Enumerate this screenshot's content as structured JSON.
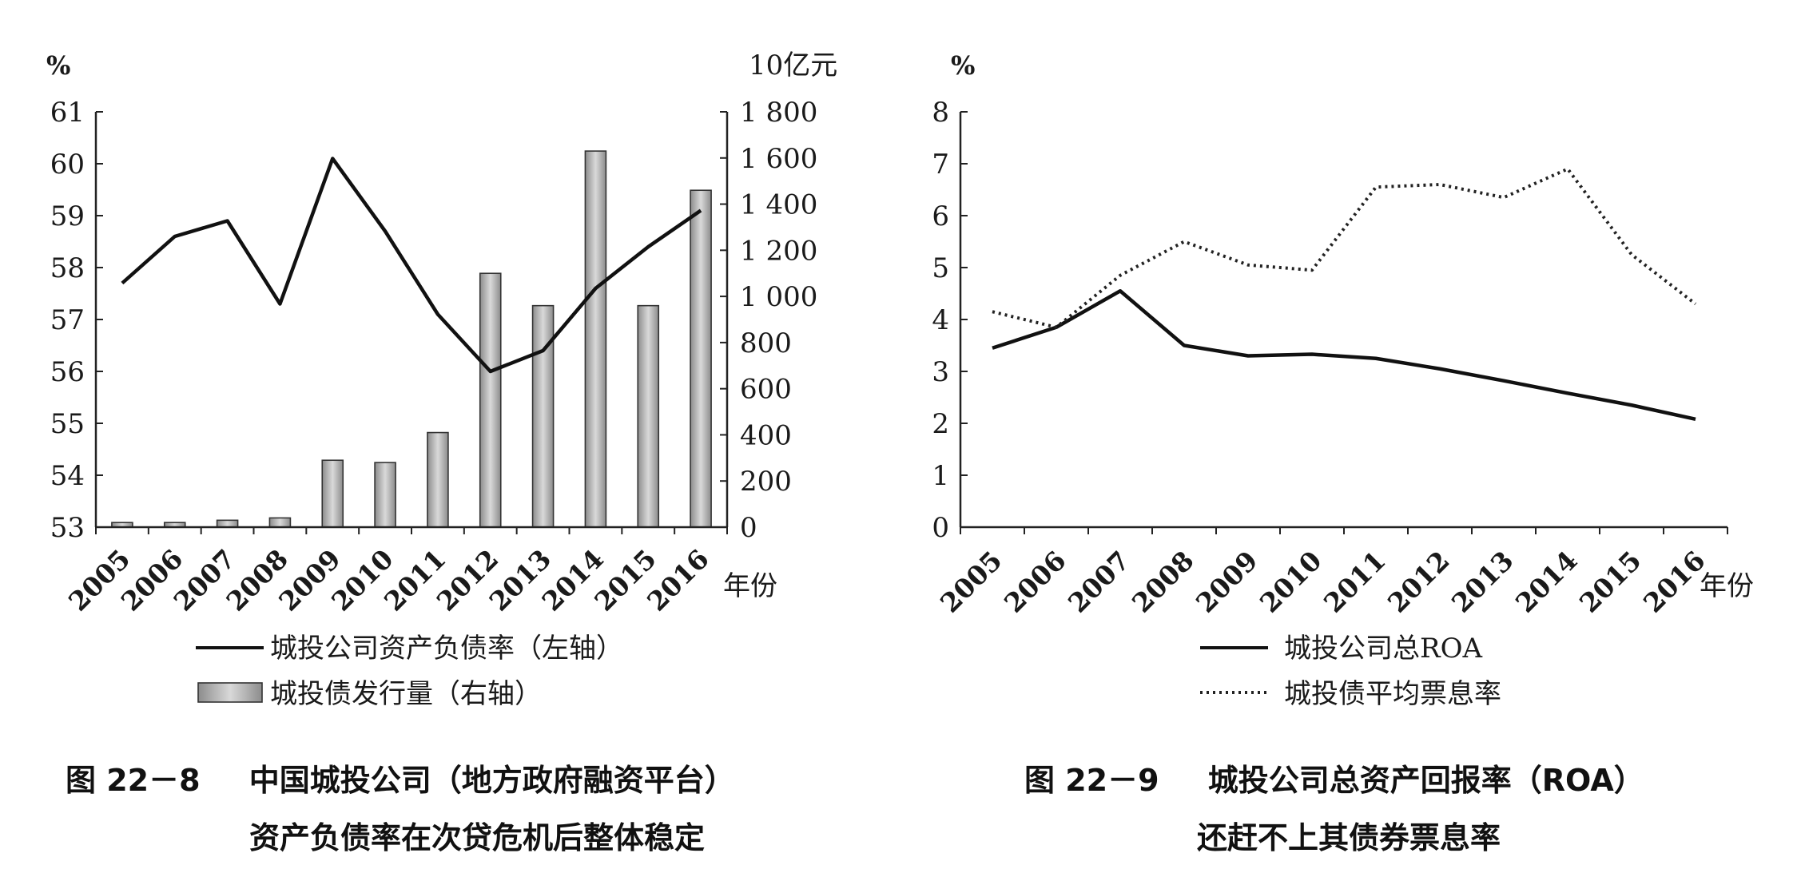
{
  "charts": [
    {
      "id": "fig22_8",
      "type": "bar+line",
      "left_axis": {
        "unit": "%",
        "min": 53,
        "max": 61,
        "ticks": [
          "53",
          "54",
          "55",
          "56",
          "57",
          "58",
          "59",
          "60",
          "61"
        ]
      },
      "right_axis": {
        "unit": "10亿元",
        "min": 0,
        "max": 1800,
        "ticks": [
          "0",
          "200",
          "400",
          "600",
          "800",
          "1 000",
          "1 200",
          "1 400",
          "1 600",
          "1 800"
        ]
      },
      "x_unit": "年份",
      "categories": [
        "2005",
        "2006",
        "2007",
        "2008",
        "2009",
        "2010",
        "2011",
        "2012",
        "2013",
        "2014",
        "2015",
        "2016"
      ],
      "legend": {
        "line_label": "城投公司资产负债率（左轴）",
        "bar_label": "城投债发行量（右轴）"
      },
      "caption": {
        "number": "图 22－8",
        "line1": "中国城投公司（地方政府融资平台）",
        "line2": "资产负债率在次贷危机后整体稳定"
      }
    },
    {
      "id": "fig22_9",
      "type": "line",
      "left_axis": {
        "unit": "%",
        "min": 0,
        "max": 8,
        "ticks": [
          "0",
          "1",
          "2",
          "3",
          "4",
          "5",
          "6",
          "7",
          "8"
        ]
      },
      "x_unit": "年份",
      "categories": [
        "2005",
        "2006",
        "2007",
        "2008",
        "2009",
        "2010",
        "2011",
        "2012",
        "2013",
        "2014",
        "2015",
        "2016"
      ],
      "legend": {
        "solid_label": "城投公司总ROA",
        "dotted_label": "城投债平均票息率"
      },
      "caption": {
        "number": "图 22－9",
        "line1": "城投公司总资产回报率（ROA）",
        "line2": "还赶不上其债券票息率"
      }
    }
  ],
  "chart_data": [
    {
      "type": "bar",
      "categories": [
        "2005",
        "2006",
        "2007",
        "2008",
        "2009",
        "2010",
        "2011",
        "2012",
        "2013",
        "2014",
        "2015",
        "2016"
      ],
      "series": [
        {
          "name": "城投公司资产负债率（左轴）",
          "type": "line",
          "axis": "left",
          "values": [
            57.7,
            58.6,
            58.9,
            57.3,
            60.1,
            58.7,
            57.1,
            56.0,
            56.4,
            57.6,
            58.4,
            59.1
          ]
        },
        {
          "name": "城投债发行量（右轴）",
          "type": "bar",
          "axis": "right",
          "values": [
            20,
            20,
            30,
            40,
            290,
            280,
            410,
            1100,
            960,
            1630,
            960,
            1460
          ]
        }
      ],
      "ylim_left": [
        53,
        61
      ],
      "ylim_right": [
        0,
        1800
      ],
      "ylabel_left": "%",
      "ylabel_right": "10亿元",
      "xlabel": "年份",
      "grid": false,
      "legend_position": "bottom"
    },
    {
      "type": "line",
      "categories": [
        "2005",
        "2006",
        "2007",
        "2008",
        "2009",
        "2010",
        "2011",
        "2012",
        "2013",
        "2014",
        "2015",
        "2016"
      ],
      "series": [
        {
          "name": "城投公司总ROA",
          "style": "solid",
          "values": [
            3.45,
            3.85,
            4.55,
            3.5,
            3.3,
            3.33,
            3.25,
            3.05,
            2.82,
            2.58,
            2.35,
            2.08
          ]
        },
        {
          "name": "城投债平均票息率",
          "style": "dotted",
          "values": [
            4.15,
            3.85,
            4.85,
            5.5,
            5.05,
            4.95,
            6.55,
            6.6,
            6.35,
            6.9,
            5.25,
            4.3
          ]
        }
      ],
      "ylim": [
        0,
        8
      ],
      "ylabel": "%",
      "xlabel": "年份",
      "grid": false,
      "legend_position": "bottom"
    }
  ]
}
